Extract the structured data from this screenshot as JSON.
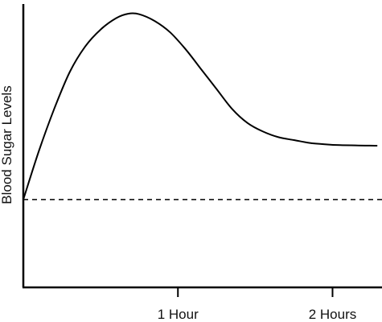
{
  "chart_data": {
    "type": "line",
    "ylabel": "Blood Sugar Levels",
    "xlabel": "",
    "title": "",
    "x_unit_hours": true,
    "xlim": [
      0,
      2.32
    ],
    "ylim": [
      0,
      1
    ],
    "xticks": [
      {
        "value": 1,
        "label": "1 Hour"
      },
      {
        "value": 2,
        "label": "2 Hours"
      }
    ],
    "baseline": {
      "y": 0.31,
      "style": "dashed"
    },
    "series": [
      {
        "points": [
          [
            0.0,
            0.31
          ],
          [
            0.1,
            0.48
          ],
          [
            0.2,
            0.63
          ],
          [
            0.3,
            0.76
          ],
          [
            0.4,
            0.85
          ],
          [
            0.5,
            0.91
          ],
          [
            0.6,
            0.95
          ],
          [
            0.68,
            0.966
          ],
          [
            0.75,
            0.964
          ],
          [
            0.85,
            0.94
          ],
          [
            0.95,
            0.9
          ],
          [
            1.05,
            0.84
          ],
          [
            1.15,
            0.77
          ],
          [
            1.25,
            0.7
          ],
          [
            1.35,
            0.63
          ],
          [
            1.45,
            0.58
          ],
          [
            1.55,
            0.55
          ],
          [
            1.65,
            0.53
          ],
          [
            1.75,
            0.52
          ],
          [
            1.85,
            0.51
          ],
          [
            1.95,
            0.505
          ],
          [
            2.05,
            0.502
          ],
          [
            2.15,
            0.501
          ],
          [
            2.29,
            0.5
          ]
        ]
      }
    ],
    "grid": false,
    "colors": {
      "curve": "#000000",
      "axes": "#000000",
      "baseline": "#000000"
    }
  }
}
